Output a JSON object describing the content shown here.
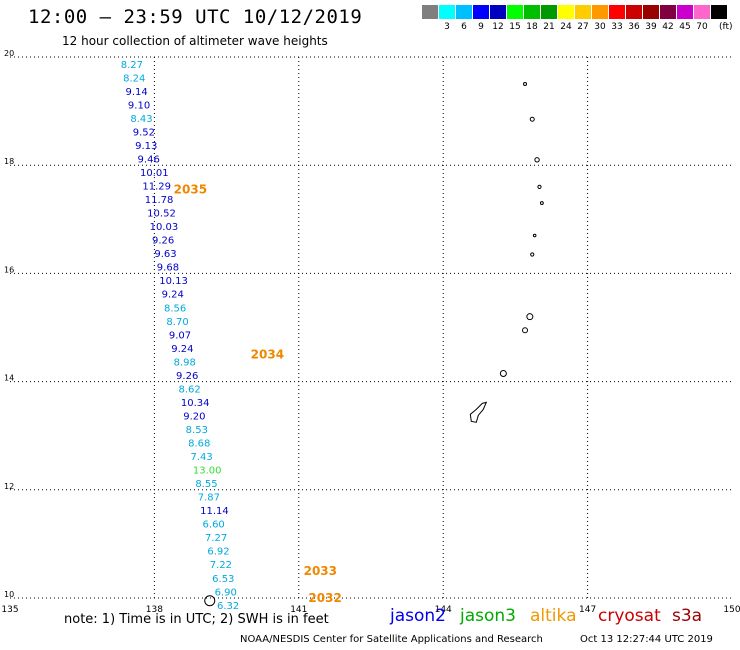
{
  "header": {
    "title": "12:00 – 23:59 UTC 10/12/2019",
    "subtitle": "12 hour collection of altimeter wave heights"
  },
  "colorbar": {
    "colors": [
      "#7f7f7f",
      "#00ffff",
      "#00bfff",
      "#0000ff",
      "#0000bf",
      "#00ff00",
      "#00bf00",
      "#009900",
      "#ffff00",
      "#ffcc00",
      "#ff9900",
      "#ff0000",
      "#cc0000",
      "#990000",
      "#800040",
      "#cc00cc",
      "#ff66cc",
      "#000000"
    ],
    "labels": [
      "3",
      "6",
      "9",
      "12",
      "15",
      "18",
      "21",
      "24",
      "27",
      "30",
      "33",
      "36",
      "39",
      "42",
      "45",
      "70"
    ],
    "unit": "(ft)"
  },
  "map": {
    "lon_ticks": [
      "135",
      "138",
      "141",
      "144",
      "147",
      "150"
    ],
    "lat_ticks": [
      "20",
      "18",
      "16",
      "14",
      "12",
      "10"
    ]
  },
  "track": {
    "colors": {
      "cyan": "#00aadd",
      "blue": "#0000cc",
      "green": "#33dd33",
      "orange": "#ee8800"
    },
    "times": [
      {
        "label": "2035",
        "lat": 17.55,
        "lon": 138.4
      },
      {
        "label": "2034",
        "lat": 14.5,
        "lon": 140.0
      },
      {
        "label": "2033",
        "lat": 10.5,
        "lon": 141.1
      },
      {
        "label": "2032",
        "lat": 10.0,
        "lon": 141.2
      }
    ],
    "points": [
      {
        "value": "8.27",
        "lat": 19.8,
        "lon": 137.3,
        "color": "cyan"
      },
      {
        "value": "8.24",
        "lat": 19.55,
        "lon": 137.35,
        "color": "cyan"
      },
      {
        "value": "9.14",
        "lat": 19.3,
        "lon": 137.4,
        "color": "blue"
      },
      {
        "value": "9.10",
        "lat": 19.05,
        "lon": 137.45,
        "color": "blue"
      },
      {
        "value": "8.43",
        "lat": 18.8,
        "lon": 137.5,
        "color": "cyan"
      },
      {
        "value": "9.52",
        "lat": 18.55,
        "lon": 137.55,
        "color": "blue"
      },
      {
        "value": "9.13",
        "lat": 18.3,
        "lon": 137.6,
        "color": "blue"
      },
      {
        "value": "9.46",
        "lat": 18.05,
        "lon": 137.65,
        "color": "blue"
      },
      {
        "value": "10.01",
        "lat": 17.8,
        "lon": 137.7,
        "color": "blue"
      },
      {
        "value": "11.29",
        "lat": 17.55,
        "lon": 137.75,
        "color": "blue"
      },
      {
        "value": "11.78",
        "lat": 17.3,
        "lon": 137.8,
        "color": "blue"
      },
      {
        "value": "10.52",
        "lat": 17.05,
        "lon": 137.85,
        "color": "blue"
      },
      {
        "value": "10.03",
        "lat": 16.8,
        "lon": 137.9,
        "color": "blue"
      },
      {
        "value": "9.26",
        "lat": 16.55,
        "lon": 137.95,
        "color": "blue"
      },
      {
        "value": "9.63",
        "lat": 16.3,
        "lon": 138.0,
        "color": "blue"
      },
      {
        "value": "9.68",
        "lat": 16.05,
        "lon": 138.05,
        "color": "blue"
      },
      {
        "value": "10.13",
        "lat": 15.8,
        "lon": 138.1,
        "color": "blue"
      },
      {
        "value": "9.24",
        "lat": 15.55,
        "lon": 138.15,
        "color": "blue"
      },
      {
        "value": "8.56",
        "lat": 15.3,
        "lon": 138.2,
        "color": "cyan"
      },
      {
        "value": "8.70",
        "lat": 15.05,
        "lon": 138.25,
        "color": "cyan"
      },
      {
        "value": "9.07",
        "lat": 14.8,
        "lon": 138.3,
        "color": "blue"
      },
      {
        "value": "9.24",
        "lat": 14.55,
        "lon": 138.35,
        "color": "blue"
      },
      {
        "value": "8.98",
        "lat": 14.3,
        "lon": 138.4,
        "color": "cyan"
      },
      {
        "value": "9.26",
        "lat": 14.05,
        "lon": 138.45,
        "color": "blue"
      },
      {
        "value": "8.62",
        "lat": 13.8,
        "lon": 138.5,
        "color": "cyan"
      },
      {
        "value": "10.34",
        "lat": 13.55,
        "lon": 138.55,
        "color": "blue"
      },
      {
        "value": "9.20",
        "lat": 13.3,
        "lon": 138.6,
        "color": "blue"
      },
      {
        "value": "8.53",
        "lat": 13.05,
        "lon": 138.65,
        "color": "cyan"
      },
      {
        "value": "8.68",
        "lat": 12.8,
        "lon": 138.7,
        "color": "cyan"
      },
      {
        "value": "7.43",
        "lat": 12.55,
        "lon": 138.75,
        "color": "cyan"
      },
      {
        "value": "13.00",
        "lat": 12.3,
        "lon": 138.8,
        "color": "green"
      },
      {
        "value": "8.55",
        "lat": 12.05,
        "lon": 138.85,
        "color": "cyan"
      },
      {
        "value": "7.87",
        "lat": 11.8,
        "lon": 138.9,
        "color": "cyan"
      },
      {
        "value": "11.14",
        "lat": 11.55,
        "lon": 138.95,
        "color": "blue"
      },
      {
        "value": "6.60",
        "lat": 11.3,
        "lon": 139.0,
        "color": "cyan"
      },
      {
        "value": "7.27",
        "lat": 11.05,
        "lon": 139.05,
        "color": "cyan"
      },
      {
        "value": "6.92",
        "lat": 10.8,
        "lon": 139.1,
        "color": "cyan"
      },
      {
        "value": "7.22",
        "lat": 10.55,
        "lon": 139.15,
        "color": "cyan"
      },
      {
        "value": "6.53",
        "lat": 10.3,
        "lon": 139.2,
        "color": "cyan"
      },
      {
        "value": "6.90",
        "lat": 10.05,
        "lon": 139.25,
        "color": "cyan"
      },
      {
        "value": "6.32",
        "lat": 9.8,
        "lon": 139.3,
        "color": "cyan"
      }
    ]
  },
  "footer": {
    "note": "note: 1) Time is in UTC; 2) SWH is in feet",
    "satellites": [
      {
        "name": "jason2",
        "color": "#0000ee"
      },
      {
        "name": "jason3",
        "color": "#00aa00"
      },
      {
        "name": "altika",
        "color": "#ee9900"
      },
      {
        "name": "cryosat",
        "color": "#cc0000"
      },
      {
        "name": "s3a",
        "color": "#990000"
      }
    ],
    "credit": "NOAA/NESDIS Center for Satellite Applications and Research",
    "timestamp": "Oct 13 12:27:44 UTC 2019"
  }
}
